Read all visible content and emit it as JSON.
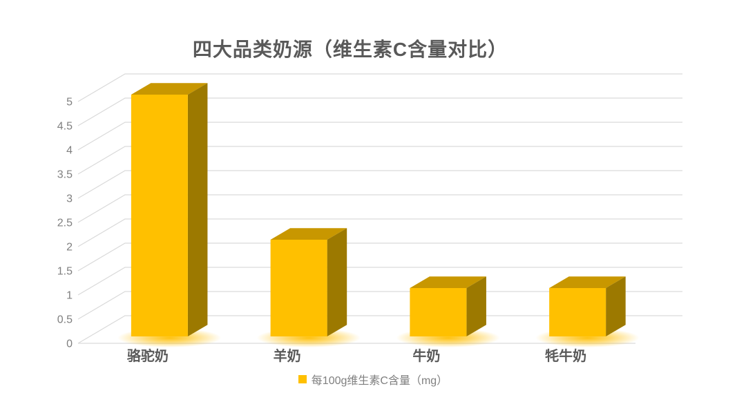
{
  "title": "四大品类奶源（维生素C含量对比）",
  "legend": {
    "marker_color": "#FFC000",
    "label": "每100g维生素C含量（mg）"
  },
  "chart_data": {
    "type": "bar",
    "style": "3d-clustered-column",
    "title": "四大品类奶源（维生素C含量对比）",
    "categories": [
      "骆驼奶",
      "羊奶",
      "牛奶",
      "牦牛奶"
    ],
    "series": [
      {
        "name": "每100g维生素C含量（mg）",
        "values": [
          5,
          2,
          1,
          1
        ]
      }
    ],
    "xlabel": "",
    "ylabel": "",
    "ylim": [
      0,
      5
    ],
    "ytick_step": 0.5,
    "yticks": [
      "0",
      "0.5",
      "1",
      "1.5",
      "2",
      "2.5",
      "3",
      "3.5",
      "4",
      "4.5",
      "5"
    ],
    "grid": true,
    "legend_position": "bottom"
  },
  "colors": {
    "background": "#FFFFFF",
    "bar_front": "#FFC000",
    "bar_top": "#C89700",
    "bar_side": "#9C7900",
    "bar_glow": "#FFBE00",
    "gridline": "#D9D9D9",
    "title_text": "#595959",
    "category_text": "#595959",
    "axis_text": "#7F7F7F",
    "legend_text": "#7F7F7F"
  }
}
